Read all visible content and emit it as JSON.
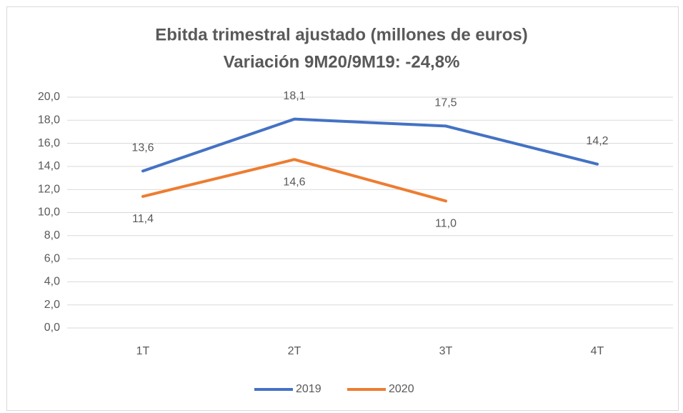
{
  "chart_data": {
    "type": "line",
    "title": "Ebitda trimestral ajustado (millones de euros)",
    "subtitle": "Variación 9M20/9M19: -24,8%",
    "categories": [
      "1T",
      "2T",
      "3T",
      "4T"
    ],
    "series": [
      {
        "name": "2019",
        "color": "#4472c4",
        "values": [
          13.6,
          18.1,
          17.5,
          14.2
        ],
        "value_labels": [
          "13,6",
          "18,1",
          "17,5",
          "14,2"
        ]
      },
      {
        "name": "2020",
        "color": "#ed7d31",
        "values": [
          11.4,
          14.6,
          11.0,
          null
        ],
        "value_labels": [
          "11,4",
          "14,6",
          "11,0",
          null
        ]
      }
    ],
    "ylim": [
      0,
      20
    ],
    "yticks": [
      {
        "value": 0,
        "label": "0,0"
      },
      {
        "value": 2,
        "label": "2,0"
      },
      {
        "value": 4,
        "label": "4,0"
      },
      {
        "value": 6,
        "label": "6,0"
      },
      {
        "value": 8,
        "label": "8,0"
      },
      {
        "value": 10,
        "label": "10,0"
      },
      {
        "value": 12,
        "label": "12,0"
      },
      {
        "value": 14,
        "label": "14,0"
      },
      {
        "value": 16,
        "label": "16,0"
      },
      {
        "value": 18,
        "label": "18,0"
      },
      {
        "value": 20,
        "label": "20,0"
      }
    ],
    "grid": true,
    "legend": "bottom"
  }
}
